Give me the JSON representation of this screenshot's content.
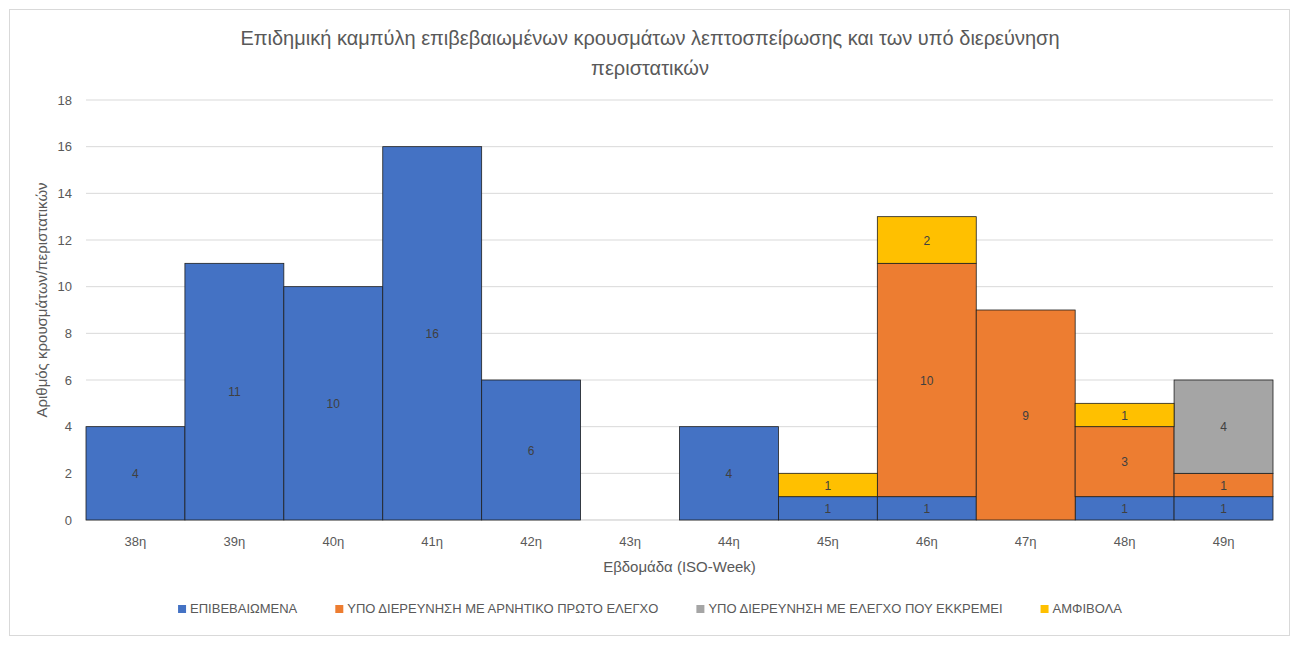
{
  "chart_data": {
    "type": "bar",
    "title": "Επιδημική καμπύλη επιβεβαιωμένων κρουσμάτων λεπτοσπείρωσης και των υπό διερεύνηση περιστατικών",
    "x_label": "Εβδομάδα (ISO-Week)",
    "y_label": "Αριθμός κρουσμάτων/περιστατικών",
    "categories": [
      "38η",
      "39η",
      "40η",
      "41η",
      "42η",
      "43η",
      "44η",
      "45η",
      "46η",
      "47η",
      "48η",
      "49η"
    ],
    "series": [
      {
        "name": "ΕΠΙΒΕΒΑΙΩΜΕΝΑ",
        "color": "#4472c4",
        "values": [
          4,
          11,
          10,
          16,
          6,
          0,
          4,
          1,
          1,
          0,
          1,
          1
        ]
      },
      {
        "name": "ΥΠΟ ΔΙΕΡΕΥΝΗΣΗ ΜΕ ΑΡΝΗΤΙΚΟ ΠΡΩΤΟ ΕΛΕΓΧΟ",
        "color": "#ed7d31",
        "values": [
          0,
          0,
          0,
          0,
          0,
          0,
          0,
          0,
          10,
          9,
          3,
          1
        ]
      },
      {
        "name": "ΥΠΟ ΔΙΕΡΕΥΝΗΣΗ ΜΕ ΕΛΕΓΧΟ ΠΟΥ ΕΚΚΡΕΜΕΙ",
        "color": "#a5a5a5",
        "values": [
          0,
          0,
          0,
          0,
          0,
          0,
          0,
          0,
          0,
          0,
          0,
          4
        ]
      },
      {
        "name": "ΑΜΦΙΒΟΛΑ",
        "color": "#ffc000",
        "values": [
          0,
          0,
          0,
          0,
          0,
          0,
          0,
          1,
          2,
          0,
          1,
          0
        ]
      }
    ],
    "ylim": [
      0,
      18
    ],
    "yticks": [
      0,
      2,
      4,
      6,
      8,
      10,
      12,
      14,
      16,
      18
    ],
    "grid": true,
    "stacked": true,
    "data_labels": true,
    "legend": "bottom"
  }
}
